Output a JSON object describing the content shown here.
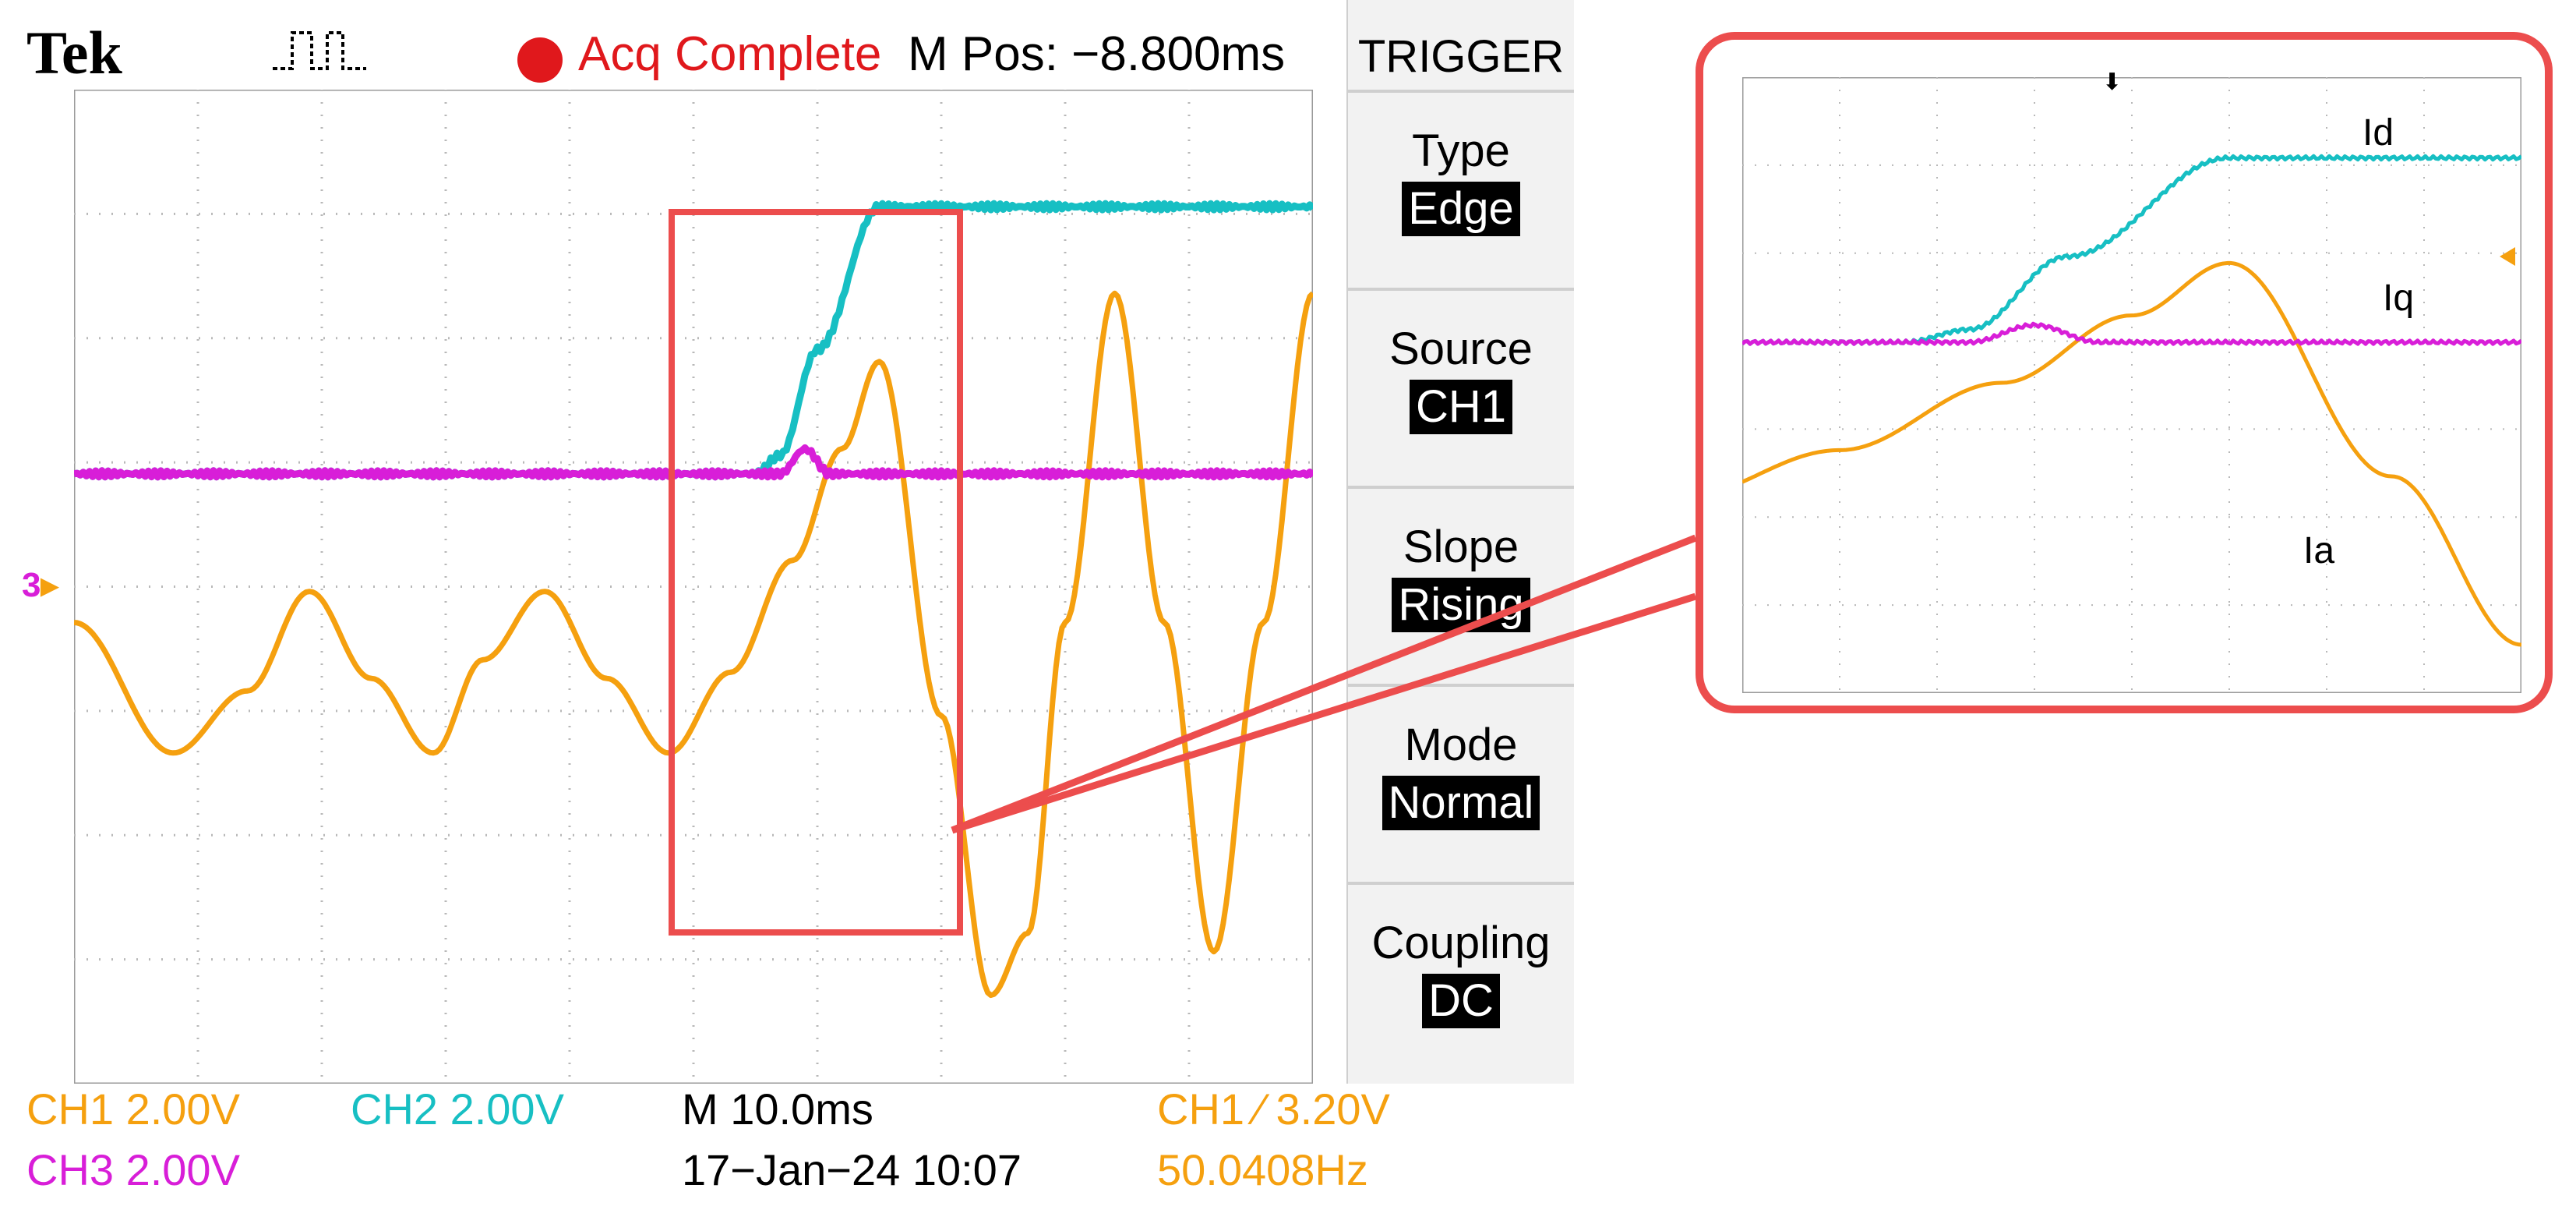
{
  "header": {
    "brand": "Tek",
    "trigger_symbol": "⎍⎍",
    "acquisition_status": "Acq Complete",
    "m_pos": "M Pos: −8.800ms"
  },
  "menu": {
    "title": "TRIGGER",
    "items": [
      {
        "label": "Type",
        "value": "Edge"
      },
      {
        "label": "Source",
        "value": "CH1"
      },
      {
        "label": "Slope",
        "value": "Rising"
      },
      {
        "label": "Mode",
        "value": "Normal"
      },
      {
        "label": "Coupling",
        "value": "DC"
      }
    ]
  },
  "status": {
    "ch1": "CH1  2.00V",
    "ch2": "CH2  2.00V",
    "ch3": "CH3  2.00V",
    "timebase": "M 10.0ms",
    "datetime": "17−Jan−24 10:07",
    "trigger_level": "CH1 ∕ 3.20V",
    "frequency": "50.0408Hz"
  },
  "ground_marker": "3",
  "zoom_labels": {
    "id": "Id",
    "iq": "Iq",
    "ia": "Ia"
  },
  "colors": {
    "ch1": "#f5a00f",
    "ch2": "#17bfc3",
    "ch3": "#d81ed8",
    "highlight": "#ec4d4d"
  },
  "chart_data": {
    "type": "line",
    "time_per_div_ms": 10,
    "volts_per_div": 2,
    "series": [
      {
        "name": "Ia",
        "description_points_ms_V": [
          [
            0,
            0.0
          ],
          [
            8,
            -2.1
          ],
          [
            14,
            -1.1
          ],
          [
            19,
            0.5
          ],
          [
            24,
            -0.9
          ],
          [
            29,
            -2.1
          ],
          [
            33,
            -0.6
          ],
          [
            38,
            0.5
          ],
          [
            43,
            -0.9
          ],
          [
            48,
            -2.1
          ],
          [
            53,
            -0.8
          ],
          [
            58,
            1.0
          ],
          [
            62,
            2.8
          ],
          [
            65,
            4.2
          ],
          [
            70,
            -1.5
          ],
          [
            74,
            -6.0
          ],
          [
            77,
            -5.0
          ],
          [
            80,
            0.0
          ],
          [
            84,
            5.3
          ],
          [
            88,
            0.0
          ],
          [
            92,
            -5.3
          ],
          [
            96,
            0.0
          ],
          [
            100,
            5.3
          ]
        ]
      },
      {
        "name": "Id",
        "description_points_ms_V": [
          [
            0,
            1.0
          ],
          [
            55,
            1.0
          ],
          [
            57,
            1.3
          ],
          [
            60,
            3.0
          ],
          [
            65,
            5.3
          ],
          [
            100,
            5.3
          ]
        ]
      },
      {
        "name": "Iq",
        "description_points_ms_V": [
          [
            0,
            1.0
          ],
          [
            57,
            1.0
          ],
          [
            59,
            1.4
          ],
          [
            61,
            1.0
          ],
          [
            100,
            1.0
          ]
        ]
      }
    ],
    "trigger_level_V": 3.2
  }
}
